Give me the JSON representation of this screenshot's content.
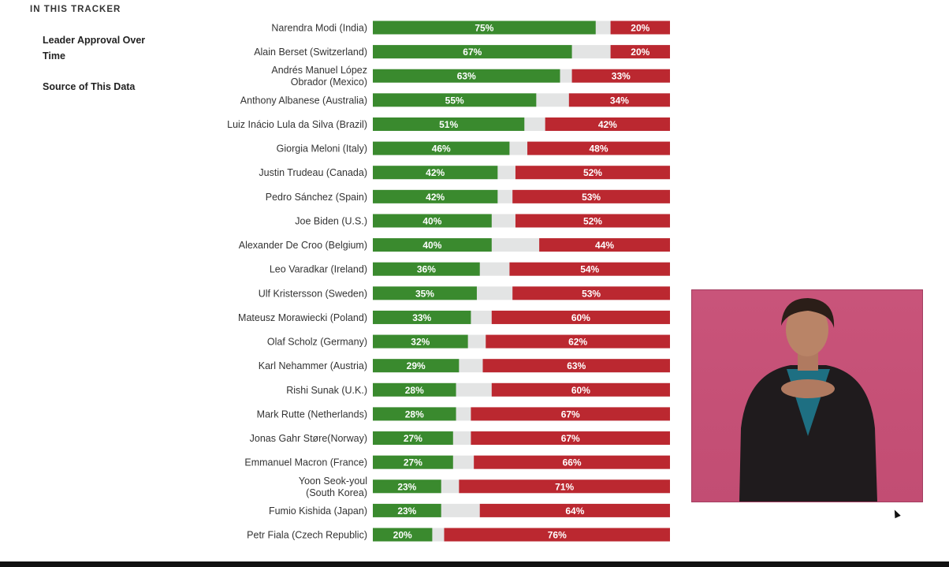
{
  "sidebar": {
    "heading": "IN THIS TRACKER",
    "items": [
      {
        "label": "Leader Approval Over Time"
      },
      {
        "label": "Source of This Data"
      }
    ]
  },
  "chart_data": {
    "type": "bar",
    "orientation": "horizontal-stacked",
    "colors": {
      "approve": "#3a8a2e",
      "no_opinion": "#e3e4e4",
      "disapprove": "#bb2830"
    },
    "xlim": [
      0,
      100
    ],
    "categories": [
      "Narendra Modi (India)",
      "Alain Berset (Switzerland)",
      "Andrés Manuel López Obrador (Mexico)",
      "Anthony Albanese (Australia)",
      "Luiz Inácio Lula da Silva (Brazil)",
      "Giorgia Meloni (Italy)",
      "Justin Trudeau (Canada)",
      "Pedro Sánchez (Spain)",
      "Joe Biden (U.S.)",
      "Alexander De Croo (Belgium)",
      "Leo Varadkar (Ireland)",
      "Ulf Kristersson (Sweden)",
      "Mateusz Morawiecki (Poland)",
      "Olaf Scholz (Germany)",
      "Karl Nehammer (Austria)",
      "Rishi Sunak (U.K.)",
      "Mark Rutte (Netherlands)",
      "Jonas Gahr Støre(Norway)",
      "Emmanuel Macron (France)",
      "Yoon Seok-youl (South Korea)",
      "Fumio Kishida (Japan)",
      "Petr Fiala (Czech Republic)"
    ],
    "category_lines": [
      [
        "Narendra Modi (India)"
      ],
      [
        "Alain Berset (Switzerland)"
      ],
      [
        "Andrés Manuel López",
        "Obrador (Mexico)"
      ],
      [
        "Anthony Albanese (Australia)"
      ],
      [
        "Luiz Inácio Lula da Silva (Brazil)"
      ],
      [
        "Giorgia Meloni (Italy)"
      ],
      [
        "Justin Trudeau (Canada)"
      ],
      [
        "Pedro Sánchez (Spain)"
      ],
      [
        "Joe Biden (U.S.)"
      ],
      [
        "Alexander De Croo (Belgium)"
      ],
      [
        "Leo Varadkar (Ireland)"
      ],
      [
        "Ulf Kristersson (Sweden)"
      ],
      [
        "Mateusz Morawiecki (Poland)"
      ],
      [
        "Olaf Scholz (Germany)"
      ],
      [
        "Karl Nehammer (Austria)"
      ],
      [
        "Rishi Sunak (U.K.)"
      ],
      [
        "Mark Rutte (Netherlands)"
      ],
      [
        "Jonas Gahr Støre(Norway)"
      ],
      [
        "Emmanuel Macron (France)"
      ],
      [
        "Yoon Seok-youl",
        "(South Korea)"
      ],
      [
        "Fumio Kishida (Japan)"
      ],
      [
        "Petr Fiala (Czech Republic)"
      ]
    ],
    "series": [
      {
        "key": "approve",
        "values": [
          75,
          67,
          63,
          55,
          51,
          46,
          42,
          42,
          40,
          40,
          36,
          35,
          33,
          32,
          29,
          28,
          28,
          27,
          27,
          23,
          23,
          20
        ]
      },
      {
        "key": "disapprove",
        "values": [
          20,
          20,
          33,
          34,
          42,
          48,
          52,
          53,
          52,
          44,
          54,
          53,
          60,
          62,
          63,
          60,
          67,
          67,
          66,
          71,
          64,
          76
        ]
      }
    ],
    "value_suffix": "%"
  }
}
